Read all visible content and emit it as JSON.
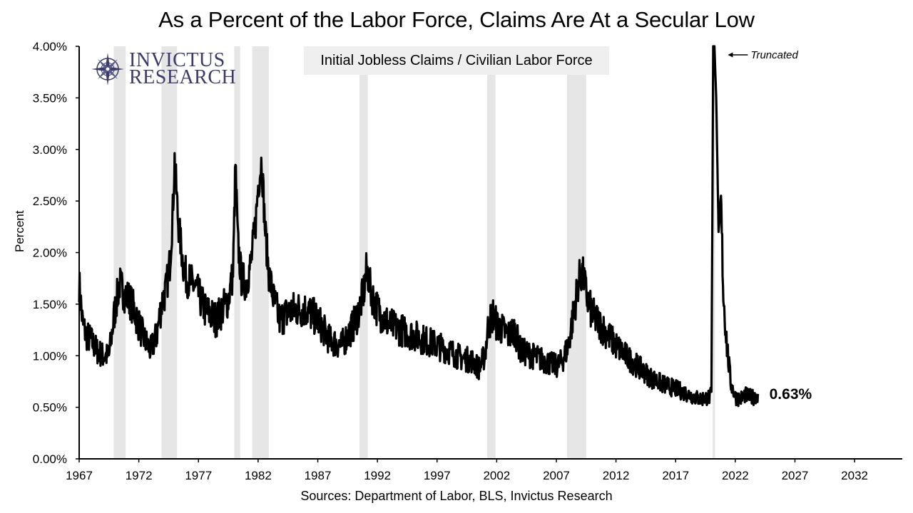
{
  "title": "As a Percent of the Labor Force, Claims Are At a Secular Low",
  "logo": {
    "line1": "INVICTUS",
    "line2": "RESEARCH",
    "icon": "compass-rose-icon"
  },
  "source_note": "Sources: Department of Labor, BLS, Invictus Research",
  "chart_data": {
    "type": "line",
    "title": "As a Percent of the Labor Force, Claims Are At a Secular Low",
    "ylabel": "Percent",
    "xlabel": "",
    "xlim": [
      1967,
      2036
    ],
    "ylim": [
      0,
      4
    ],
    "x_ticks": [
      1967,
      1972,
      1977,
      1982,
      1987,
      1992,
      1997,
      2002,
      2007,
      2012,
      2017,
      2022,
      2027,
      2032
    ],
    "x_tick_labels": [
      "1967",
      "1972",
      "1977",
      "1982",
      "1987",
      "1992",
      "1997",
      "2002",
      "2007",
      "2012",
      "2017",
      "2022",
      "2027",
      "2032"
    ],
    "y_ticks": [
      0,
      0.5,
      1,
      1.5,
      2,
      2.5,
      3,
      3.5,
      4
    ],
    "y_tick_labels": [
      "0.00%",
      "0.50%",
      "1.00%",
      "1.50%",
      "2.00%",
      "2.50%",
      "3.00%",
      "3.50%",
      "4.00%"
    ],
    "grid": false,
    "series": [
      {
        "name": "Initial Jobless Claims / Civilian Labor Force",
        "color": "#000000",
        "x": [
          1967.0,
          1967.3,
          1967.6,
          1968.0,
          1968.5,
          1969.0,
          1969.5,
          1970.0,
          1970.4,
          1970.8,
          1971.2,
          1971.6,
          1972.0,
          1972.5,
          1973.0,
          1973.5,
          1973.9,
          1974.3,
          1974.6,
          1974.85,
          1975.0,
          1975.3,
          1975.7,
          1976.0,
          1976.5,
          1977.0,
          1977.5,
          1978.0,
          1978.5,
          1979.0,
          1979.5,
          1979.9,
          1980.1,
          1980.3,
          1980.6,
          1981.0,
          1981.4,
          1981.8,
          1982.0,
          1982.3,
          1982.6,
          1982.9,
          1983.3,
          1983.8,
          1984.3,
          1985.0,
          1986.0,
          1987.0,
          1987.5,
          1988.0,
          1989.0,
          1989.5,
          1990.0,
          1990.5,
          1990.9,
          1991.1,
          1991.5,
          1992.0,
          1993.0,
          1994.0,
          1995.0,
          1996.0,
          1997.0,
          1998.0,
          1999.0,
          2000.0,
          2000.5,
          2001.0,
          2001.3,
          2001.7,
          2002.0,
          2003.0,
          2003.5,
          2004.0,
          2005.0,
          2006.0,
          2007.0,
          2007.5,
          2008.0,
          2008.5,
          2008.9,
          2009.2,
          2009.6,
          2010.0,
          2011.0,
          2012.0,
          2013.0,
          2014.0,
          2015.0,
          2016.0,
          2017.0,
          2018.0,
          2019.0,
          2019.9,
          2020.0,
          2020.15,
          2020.25,
          2020.4,
          2020.6,
          2020.8,
          2021.0,
          2021.3,
          2021.6,
          2022.0,
          2022.4,
          2022.8,
          2023.2,
          2023.6,
          2023.9
        ],
        "y": [
          1.7,
          1.3,
          1.2,
          1.15,
          1.05,
          1.0,
          1.0,
          1.45,
          1.7,
          1.6,
          1.55,
          1.45,
          1.3,
          1.15,
          1.05,
          1.2,
          1.5,
          1.65,
          1.9,
          2.4,
          2.9,
          2.3,
          1.9,
          1.75,
          1.7,
          1.6,
          1.45,
          1.4,
          1.35,
          1.45,
          1.55,
          1.8,
          2.85,
          2.1,
          1.75,
          1.7,
          1.9,
          2.3,
          2.65,
          2.9,
          2.2,
          1.8,
          1.55,
          1.35,
          1.4,
          1.45,
          1.45,
          1.35,
          1.25,
          1.15,
          1.1,
          1.2,
          1.3,
          1.45,
          1.65,
          1.85,
          1.6,
          1.45,
          1.3,
          1.25,
          1.2,
          1.15,
          1.1,
          1.05,
          0.98,
          0.95,
          0.88,
          1.0,
          1.3,
          1.4,
          1.3,
          1.2,
          1.25,
          1.05,
          1.0,
          0.95,
          0.9,
          0.95,
          1.1,
          1.45,
          1.75,
          1.8,
          1.55,
          1.4,
          1.25,
          1.1,
          0.98,
          0.88,
          0.78,
          0.72,
          0.68,
          0.63,
          0.58,
          0.6,
          0.65,
          4.0,
          4.0,
          3.5,
          2.2,
          2.5,
          1.6,
          1.1,
          0.75,
          0.6,
          0.58,
          0.62,
          0.6,
          0.6,
          0.63
        ],
        "end_label": "0.63%"
      }
    ],
    "recessions": [
      [
        1969.9,
        1970.9
      ],
      [
        1973.9,
        1975.2
      ],
      [
        1980.0,
        1980.5
      ],
      [
        1981.5,
        1982.9
      ],
      [
        1990.5,
        1991.2
      ],
      [
        2001.2,
        2001.9
      ],
      [
        2007.9,
        2009.5
      ],
      [
        2020.1,
        2020.3
      ]
    ],
    "recession_color": "#e6e6e6",
    "annotations": [
      {
        "text": "Truncated",
        "at": [
          2020.3,
          4.0
        ]
      }
    ],
    "legend": "top-center box"
  }
}
